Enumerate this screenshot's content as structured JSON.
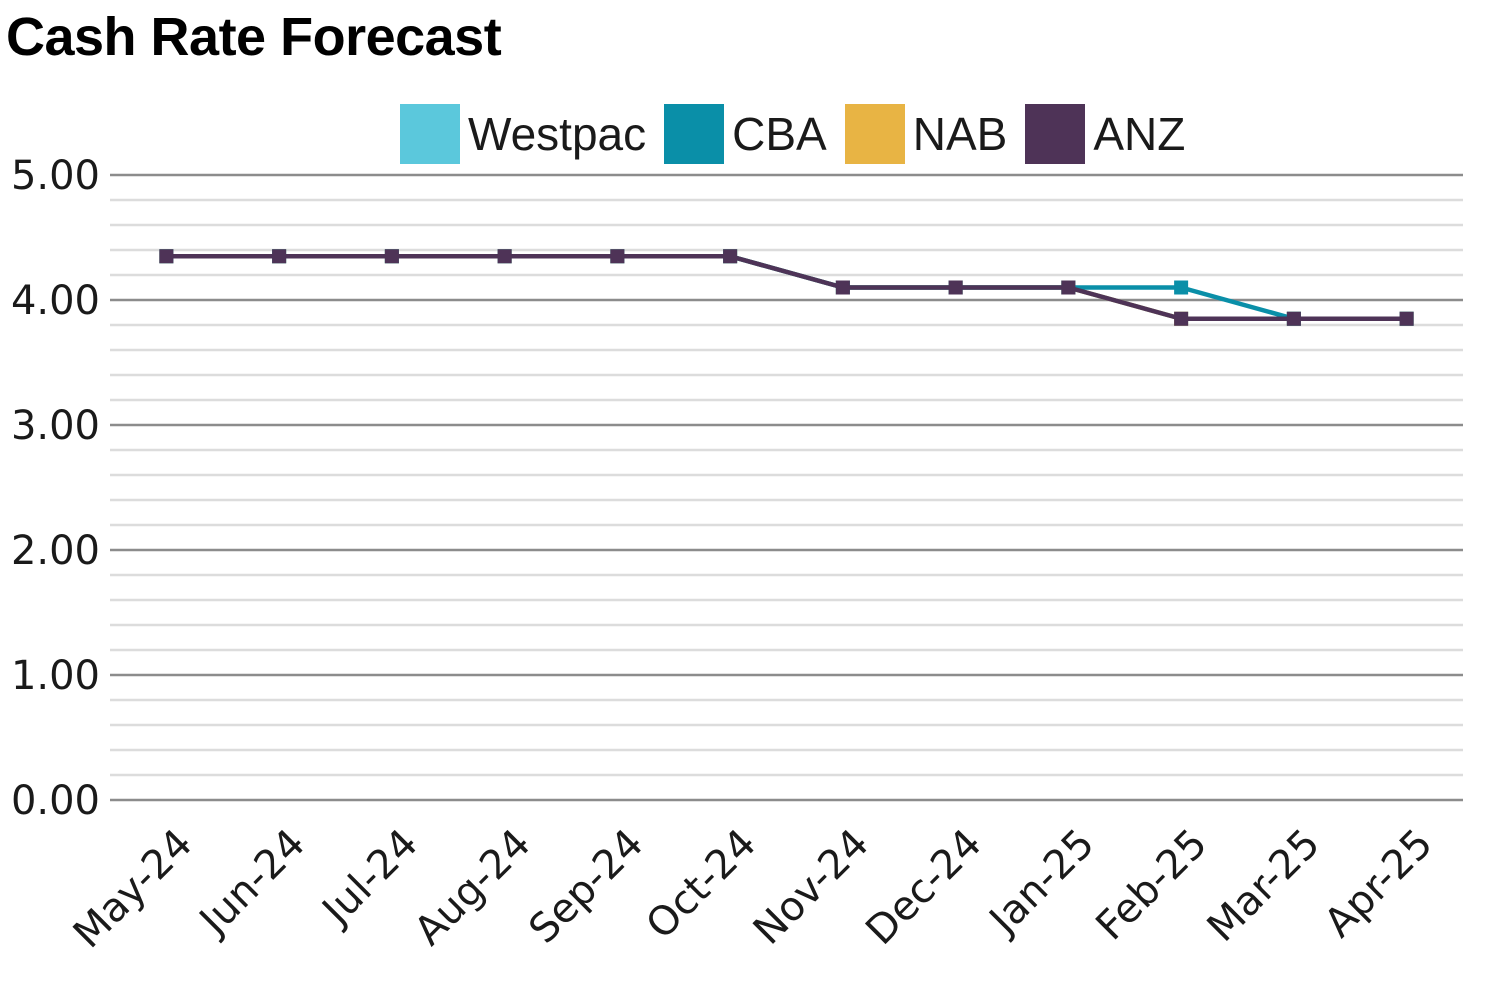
{
  "chart_data": {
    "type": "line",
    "title": "Cash Rate Forecast",
    "xlabel": "",
    "ylabel": "",
    "categories": [
      "May-24",
      "Jun-24",
      "Jul-24",
      "Aug-24",
      "Sep-24",
      "Oct-24",
      "Nov-24",
      "Dec-24",
      "Jan-25",
      "Feb-25",
      "Mar-25",
      "Apr-25"
    ],
    "ylim": [
      0,
      5
    ],
    "y_ticks": [
      "0.00",
      "1.00",
      "2.00",
      "3.00",
      "4.00",
      "5.00"
    ],
    "grid": true,
    "legend_position": "top",
    "series": [
      {
        "name": "Westpac",
        "color": "#5bc8dc",
        "values": [
          4.35,
          4.35,
          4.35,
          4.35,
          4.35,
          4.35,
          4.1,
          4.1,
          4.1,
          3.85,
          3.85,
          3.85
        ]
      },
      {
        "name": "CBA",
        "color": "#0a8fa8",
        "values": [
          4.35,
          4.35,
          4.35,
          4.35,
          4.35,
          4.35,
          4.1,
          4.1,
          4.1,
          4.1,
          3.85,
          3.85
        ]
      },
      {
        "name": "NAB",
        "color": "#e8b444",
        "values": [
          4.35,
          4.35,
          4.35,
          4.35,
          4.35,
          4.35,
          4.1,
          4.1,
          4.1,
          3.85,
          3.85,
          3.85
        ]
      },
      {
        "name": "ANZ",
        "color": "#4e3357",
        "values": [
          4.35,
          4.35,
          4.35,
          4.35,
          4.35,
          4.35,
          4.1,
          4.1,
          4.1,
          3.85,
          3.85,
          3.85
        ]
      }
    ]
  }
}
